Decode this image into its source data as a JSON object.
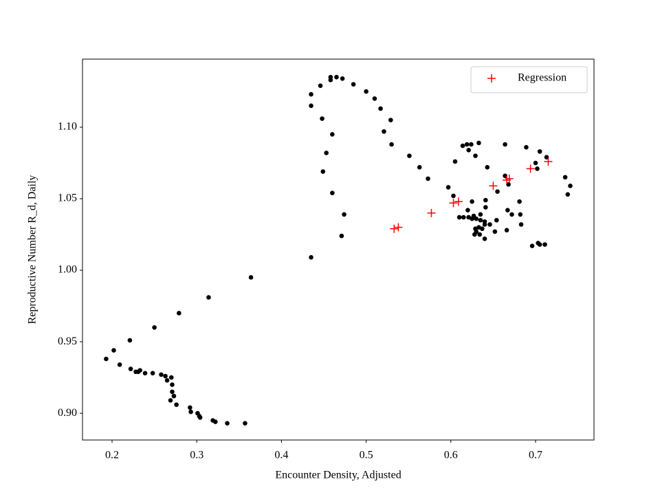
{
  "chart_data": {
    "type": "scatter",
    "xlabel": "Encounter Density, Adjusted",
    "ylabel": "Reproductive Number R_d, Daily",
    "xlim": [
      0.1651,
      0.769
    ],
    "ylim": [
      0.8813,
      1.1476
    ],
    "xticks": [
      0.2,
      0.3,
      0.4,
      0.5,
      0.6,
      0.7
    ],
    "yticks": [
      {
        "value": 0.9,
        "label": "0.90"
      },
      0.95,
      {
        "value": 1.0,
        "label": "1.00"
      },
      1.05,
      {
        "value": 1.1,
        "label": "1.10"
      }
    ],
    "legend": "upper right",
    "series": [
      {
        "color": "#000000",
        "marker": "dot",
        "x": [
          0.193,
          0.202,
          0.209,
          0.221,
          0.222,
          0.228,
          0.231,
          0.233,
          0.239,
          0.248,
          0.258,
          0.263,
          0.265,
          0.27,
          0.271,
          0.271,
          0.273,
          0.269,
          0.276,
          0.292,
          0.293,
          0.301,
          0.303,
          0.304,
          0.319,
          0.322,
          0.336,
          0.357,
          0.25,
          0.279,
          0.314,
          0.364,
          0.435,
          0.471,
          0.474,
          0.46,
          0.449,
          0.453,
          0.46,
          0.448,
          0.435,
          0.435,
          0.446,
          0.458,
          0.465,
          0.458,
          0.472,
          0.485,
          0.5,
          0.51,
          0.517,
          0.529,
          0.521,
          0.53,
          0.551,
          0.563,
          0.573,
          0.597,
          0.603,
          0.614,
          0.619,
          0.624,
          0.633,
          0.621,
          0.629,
          0.605,
          0.643,
          0.664,
          0.689,
          0.705,
          0.713,
          0.7,
          0.702,
          0.735,
          0.741,
          0.738,
          0.664,
          0.668,
          0.655,
          0.625,
          0.641,
          0.641,
          0.635,
          0.62,
          0.615,
          0.61,
          0.621,
          0.625,
          0.627,
          0.63,
          0.635,
          0.64,
          0.654,
          0.667,
          0.672,
          0.682,
          0.683,
          0.666,
          0.64,
          0.629,
          0.628,
          0.63,
          0.633,
          0.637,
          0.646,
          0.652,
          0.64,
          0.634,
          0.681,
          0.696,
          0.703,
          0.705,
          0.711
        ],
        "values": [
          0.938,
          0.944,
          0.934,
          0.951,
          0.931,
          0.929,
          0.929,
          0.93,
          0.928,
          0.928,
          0.927,
          0.926,
          0.923,
          0.925,
          0.92,
          0.915,
          0.912,
          0.909,
          0.906,
          0.904,
          0.901,
          0.9,
          0.898,
          0.897,
          0.895,
          0.894,
          0.893,
          0.893,
          0.96,
          0.97,
          0.981,
          0.995,
          1.009,
          1.024,
          1.039,
          1.054,
          1.069,
          1.082,
          1.095,
          1.106,
          1.115,
          1.123,
          1.129,
          1.133,
          1.135,
          1.135,
          1.134,
          1.13,
          1.125,
          1.12,
          1.113,
          1.105,
          1.097,
          1.088,
          1.08,
          1.072,
          1.064,
          1.058,
          1.052,
          1.087,
          1.088,
          1.088,
          1.089,
          1.084,
          1.08,
          1.076,
          1.072,
          1.088,
          1.086,
          1.083,
          1.079,
          1.075,
          1.071,
          1.065,
          1.059,
          1.053,
          1.066,
          1.06,
          1.055,
          1.048,
          1.049,
          1.044,
          1.039,
          1.042,
          1.037,
          1.037,
          1.037,
          1.036,
          1.038,
          1.036,
          1.035,
          1.034,
          1.035,
          1.042,
          1.039,
          1.039,
          1.032,
          1.028,
          1.032,
          1.029,
          1.025,
          1.027,
          1.03,
          1.029,
          1.032,
          1.027,
          1.022,
          1.025,
          1.048,
          1.017,
          1.019,
          1.018,
          1.018
        ]
      },
      {
        "name": "Regression",
        "color": "#ff0000",
        "marker": "plus",
        "x": [
          0.533,
          0.538,
          0.577,
          0.603,
          0.609,
          0.65,
          0.666,
          0.669,
          0.694,
          0.715
        ],
        "values": [
          1.029,
          1.03,
          1.04,
          1.047,
          1.048,
          1.059,
          1.063,
          1.064,
          1.071,
          1.076
        ]
      }
    ]
  }
}
